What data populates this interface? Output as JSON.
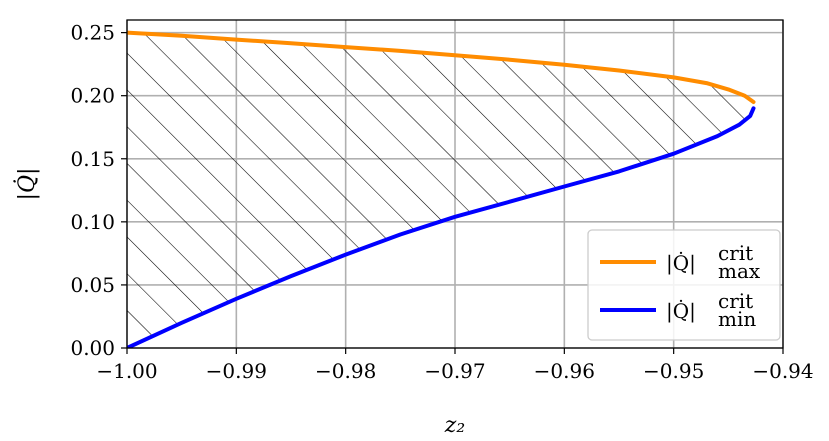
{
  "chart_data": {
    "type": "line",
    "title": "",
    "xlabel": "z₂",
    "ylabel": "|Q̇|",
    "xlim": [
      -1.0,
      -0.94
    ],
    "ylim": [
      0.0,
      0.26
    ],
    "xticks": [
      -1.0,
      -0.99,
      -0.98,
      -0.97,
      -0.96,
      -0.95,
      -0.94
    ],
    "xtick_labels": [
      "−1.00",
      "−0.99",
      "−0.98",
      "−0.97",
      "−0.96",
      "−0.95",
      "−0.94"
    ],
    "yticks": [
      0.0,
      0.05,
      0.1,
      0.15,
      0.2,
      0.25
    ],
    "ytick_labels": [
      "0.00",
      "0.05",
      "0.10",
      "0.15",
      "0.20",
      "0.25"
    ],
    "grid": true,
    "legend_position": "bottom-right",
    "hatched_region": "between max and min curves",
    "series": [
      {
        "name": "|Q̇|crit max",
        "label_base": "|Q̇|",
        "label_sup": "crit",
        "label_sub": "max",
        "color": "#ff8c00",
        "x": [
          -1.0,
          -0.995,
          -0.99,
          -0.985,
          -0.98,
          -0.975,
          -0.97,
          -0.965,
          -0.96,
          -0.955,
          -0.95,
          -0.947,
          -0.945,
          -0.9435,
          -0.9427
        ],
        "y": [
          0.25,
          0.2475,
          0.2445,
          0.2415,
          0.2385,
          0.2355,
          0.232,
          0.2285,
          0.2245,
          0.22,
          0.2145,
          0.21,
          0.205,
          0.2,
          0.195
        ]
      },
      {
        "name": "|Q̇|crit min",
        "label_base": "|Q̇|",
        "label_sup": "crit",
        "label_sub": "min",
        "color": "#0000ff",
        "x": [
          -0.9427,
          -0.943,
          -0.944,
          -0.946,
          -0.95,
          -0.955,
          -0.96,
          -0.965,
          -0.97,
          -0.975,
          -0.98,
          -0.985,
          -0.99,
          -0.995,
          -1.0
        ],
        "y": [
          0.19,
          0.184,
          0.177,
          0.168,
          0.154,
          0.14,
          0.128,
          0.116,
          0.104,
          0.09,
          0.074,
          0.057,
          0.039,
          0.02,
          0.0
        ]
      }
    ]
  }
}
